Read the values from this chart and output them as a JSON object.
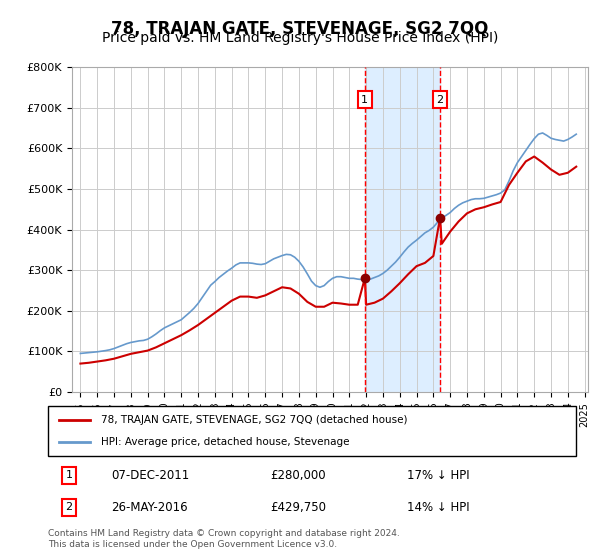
{
  "title": "78, TRAJAN GATE, STEVENAGE, SG2 7QQ",
  "subtitle": "Price paid vs. HM Land Registry's House Price Index (HPI)",
  "title_fontsize": 12,
  "subtitle_fontsize": 10,
  "ylabel": "",
  "xlabel": "",
  "ylim": [
    0,
    800000
  ],
  "yticks": [
    0,
    100000,
    200000,
    300000,
    400000,
    500000,
    600000,
    700000,
    800000
  ],
  "ytick_labels": [
    "£0",
    "£100K",
    "£200K",
    "£300K",
    "£400K",
    "£500K",
    "£600K",
    "£700K",
    "£800K"
  ],
  "background_color": "#ffffff",
  "grid_color": "#cccccc",
  "hpi_color": "#6699cc",
  "price_color": "#cc0000",
  "shade_color": "#ddeeff",
  "transaction1": {
    "date": "07-DEC-2011",
    "price": 280000,
    "label": "1",
    "year": 2011.92
  },
  "transaction2": {
    "date": "26-MAY-2016",
    "price": 429750,
    "label": "2",
    "year": 2016.4
  },
  "legend_line1": "78, TRAJAN GATE, STEVENAGE, SG2 7QQ (detached house)",
  "legend_line2": "HPI: Average price, detached house, Stevenage",
  "footnote": "Contains HM Land Registry data © Crown copyright and database right 2024.\nThis data is licensed under the Open Government Licence v3.0.",
  "hpi_data": {
    "years": [
      1995.0,
      1995.25,
      1995.5,
      1995.75,
      1996.0,
      1996.25,
      1996.5,
      1996.75,
      1997.0,
      1997.25,
      1997.5,
      1997.75,
      1998.0,
      1998.25,
      1998.5,
      1998.75,
      1999.0,
      1999.25,
      1999.5,
      1999.75,
      2000.0,
      2000.25,
      2000.5,
      2000.75,
      2001.0,
      2001.25,
      2001.5,
      2001.75,
      2002.0,
      2002.25,
      2002.5,
      2002.75,
      2003.0,
      2003.25,
      2003.5,
      2003.75,
      2004.0,
      2004.25,
      2004.5,
      2004.75,
      2005.0,
      2005.25,
      2005.5,
      2005.75,
      2006.0,
      2006.25,
      2006.5,
      2006.75,
      2007.0,
      2007.25,
      2007.5,
      2007.75,
      2008.0,
      2008.25,
      2008.5,
      2008.75,
      2009.0,
      2009.25,
      2009.5,
      2009.75,
      2010.0,
      2010.25,
      2010.5,
      2010.75,
      2011.0,
      2011.25,
      2011.5,
      2011.75,
      2012.0,
      2012.25,
      2012.5,
      2012.75,
      2013.0,
      2013.25,
      2013.5,
      2013.75,
      2014.0,
      2014.25,
      2014.5,
      2014.75,
      2015.0,
      2015.25,
      2015.5,
      2015.75,
      2016.0,
      2016.25,
      2016.5,
      2016.75,
      2017.0,
      2017.25,
      2017.5,
      2017.75,
      2018.0,
      2018.25,
      2018.5,
      2018.75,
      2019.0,
      2019.25,
      2019.5,
      2019.75,
      2020.0,
      2020.25,
      2020.5,
      2020.75,
      2021.0,
      2021.25,
      2021.5,
      2021.75,
      2022.0,
      2022.25,
      2022.5,
      2022.75,
      2023.0,
      2023.25,
      2023.5,
      2023.75,
      2024.0,
      2024.25,
      2024.5
    ],
    "values": [
      95000,
      96000,
      97000,
      98000,
      99000,
      100500,
      102000,
      104000,
      107000,
      111000,
      115000,
      119000,
      122000,
      124000,
      126000,
      127000,
      130000,
      136000,
      143000,
      151000,
      158000,
      163000,
      168000,
      173000,
      178000,
      187000,
      196000,
      206000,
      218000,
      233000,
      248000,
      263000,
      272000,
      282000,
      290000,
      298000,
      305000,
      313000,
      318000,
      318000,
      318000,
      317000,
      315000,
      314000,
      316000,
      322000,
      328000,
      332000,
      336000,
      339000,
      338000,
      332000,
      322000,
      308000,
      291000,
      273000,
      262000,
      258000,
      262000,
      272000,
      280000,
      284000,
      284000,
      282000,
      280000,
      280000,
      278000,
      277000,
      276000,
      278000,
      282000,
      286000,
      292000,
      300000,
      310000,
      320000,
      332000,
      345000,
      357000,
      366000,
      374000,
      383000,
      392000,
      398000,
      406000,
      418000,
      428000,
      435000,
      442000,
      452000,
      460000,
      466000,
      470000,
      474000,
      476000,
      476000,
      477000,
      480000,
      483000,
      486000,
      490000,
      498000,
      520000,
      545000,
      565000,
      580000,
      595000,
      610000,
      624000,
      635000,
      638000,
      632000,
      625000,
      622000,
      620000,
      618000,
      622000,
      628000,
      635000
    ]
  },
  "price_data": {
    "years": [
      1995.0,
      1995.5,
      1996.0,
      1996.5,
      1997.0,
      1997.5,
      1998.0,
      1998.5,
      1999.0,
      1999.5,
      2000.0,
      2000.5,
      2001.0,
      2001.5,
      2002.0,
      2002.5,
      2003.0,
      2003.5,
      2004.0,
      2004.5,
      2005.0,
      2005.5,
      2006.0,
      2006.5,
      2007.0,
      2007.5,
      2008.0,
      2008.5,
      2009.0,
      2009.5,
      2010.0,
      2010.5,
      2011.0,
      2011.5,
      2011.92,
      2012.0,
      2012.5,
      2013.0,
      2013.5,
      2014.0,
      2014.5,
      2015.0,
      2015.5,
      2016.0,
      2016.4,
      2016.5,
      2017.0,
      2017.5,
      2018.0,
      2018.5,
      2019.0,
      2019.5,
      2020.0,
      2020.5,
      2021.0,
      2021.5,
      2022.0,
      2022.5,
      2023.0,
      2023.5,
      2024.0,
      2024.5
    ],
    "values": [
      70000,
      72000,
      75000,
      78000,
      82000,
      88000,
      94000,
      98000,
      102000,
      110000,
      120000,
      130000,
      140000,
      152000,
      165000,
      180000,
      195000,
      210000,
      225000,
      235000,
      235000,
      232000,
      238000,
      248000,
      258000,
      255000,
      242000,
      222000,
      210000,
      210000,
      220000,
      218000,
      215000,
      215000,
      280000,
      215000,
      220000,
      230000,
      248000,
      268000,
      290000,
      310000,
      318000,
      335000,
      429750,
      365000,
      395000,
      420000,
      440000,
      450000,
      455000,
      462000,
      468000,
      510000,
      540000,
      568000,
      580000,
      565000,
      548000,
      535000,
      540000,
      555000
    ]
  }
}
